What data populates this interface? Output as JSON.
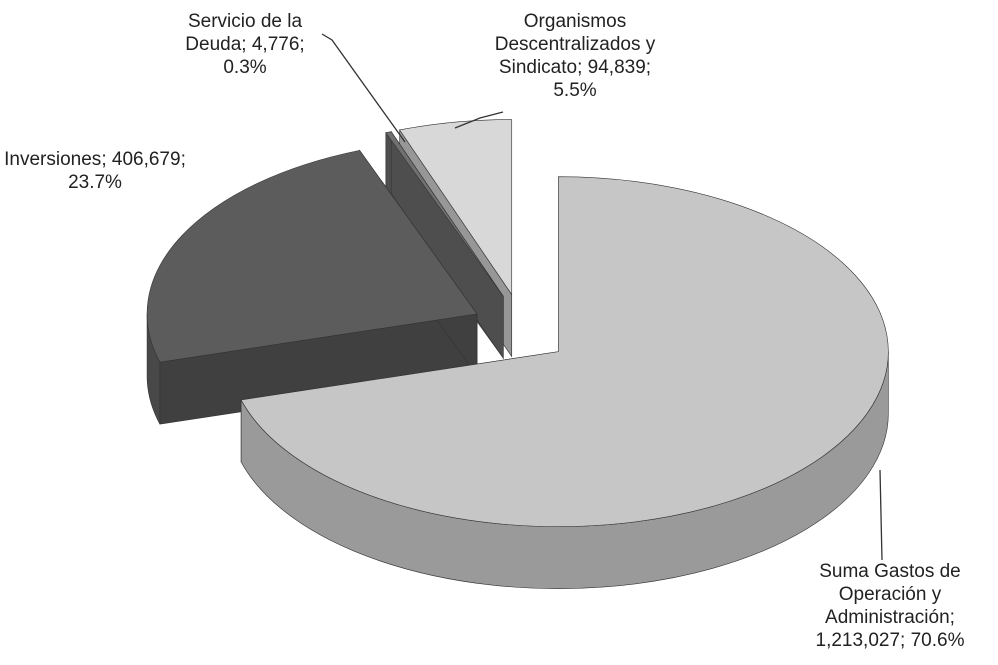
{
  "chart_data": {
    "type": "pie3d",
    "categories": [
      "Suma Gastos de Operación y Administración",
      "Inversiones",
      "Servicio de la Deuda",
      "Organismos Descentralizados y Sindicato"
    ],
    "values": [
      1213027,
      406679,
      4776,
      94839
    ],
    "value_labels": [
      "1,213,027",
      "406,679",
      "4,776",
      "94,839"
    ],
    "percents": [
      70.6,
      23.7,
      0.3,
      5.5
    ],
    "percent_labels": [
      "70.6%",
      "23.7%",
      "0.3%",
      "5.5%"
    ],
    "label_separator": "; ",
    "colors": [
      "#c6c6c6",
      "#5c5c5c",
      "#707070",
      "#d8d8d8"
    ]
  }
}
